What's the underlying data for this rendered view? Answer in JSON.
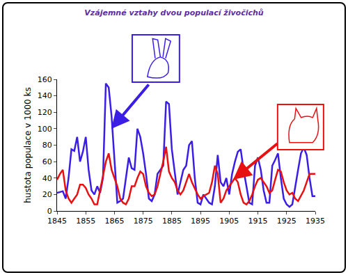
{
  "chart_data": {
    "type": "line",
    "title": "Vzájemné vztahy dvou populací živočichů",
    "y_label": "hustota populace v 1000 ks",
    "x": [
      1845,
      1846,
      1847,
      1848,
      1849,
      1850,
      1851,
      1852,
      1853,
      1854,
      1855,
      1856,
      1857,
      1858,
      1859,
      1860,
      1861,
      1862,
      1863,
      1864,
      1865,
      1866,
      1867,
      1868,
      1869,
      1870,
      1871,
      1872,
      1873,
      1874,
      1875,
      1876,
      1877,
      1878,
      1879,
      1880,
      1881,
      1882,
      1883,
      1884,
      1885,
      1886,
      1887,
      1888,
      1889,
      1890,
      1891,
      1892,
      1893,
      1894,
      1895,
      1896,
      1897,
      1898,
      1899,
      1900,
      1901,
      1902,
      1903,
      1904,
      1905,
      1906,
      1907,
      1908,
      1909,
      1910,
      1911,
      1912,
      1913,
      1914,
      1915,
      1916,
      1917,
      1918,
      1919,
      1920,
      1921,
      1922,
      1923,
      1924,
      1925,
      1926,
      1927,
      1928,
      1929,
      1930,
      1931,
      1932,
      1933,
      1934,
      1935
    ],
    "series": [
      {
        "color": "#3a1ee6",
        "values": [
          22,
          23,
          24,
          15,
          40,
          75,
          73,
          90,
          60,
          72,
          90,
          50,
          25,
          20,
          30,
          22,
          40,
          155,
          150,
          115,
          60,
          10,
          12,
          15,
          40,
          65,
          52,
          50,
          100,
          90,
          70,
          45,
          15,
          12,
          20,
          45,
          50,
          55,
          133,
          130,
          75,
          45,
          20,
          35,
          50,
          55,
          80,
          85,
          40,
          10,
          8,
          20,
          15,
          10,
          8,
          30,
          68,
          35,
          30,
          40,
          20,
          45,
          60,
          72,
          75,
          50,
          30,
          10,
          8,
          55,
          65,
          50,
          25,
          10,
          10,
          55,
          62,
          70,
          40,
          15,
          8,
          5,
          8,
          30,
          50,
          70,
          77,
          68,
          40,
          18,
          18
        ]
      },
      {
        "color": "#e81010",
        "values": [
          38,
          45,
          50,
          25,
          15,
          10,
          15,
          20,
          32,
          32,
          28,
          20,
          15,
          8,
          8,
          25,
          45,
          60,
          70,
          50,
          40,
          30,
          15,
          10,
          8,
          15,
          30,
          30,
          40,
          48,
          45,
          30,
          22,
          18,
          20,
          30,
          45,
          60,
          78,
          48,
          40,
          35,
          25,
          20,
          25,
          35,
          45,
          35,
          28,
          20,
          15,
          18,
          20,
          22,
          35,
          55,
          45,
          10,
          15,
          25,
          30,
          35,
          40,
          35,
          20,
          10,
          8,
          12,
          20,
          30,
          38,
          40,
          35,
          30,
          22,
          25,
          38,
          50,
          48,
          35,
          25,
          20,
          22,
          15,
          12,
          18,
          25,
          35,
          45,
          45,
          45
        ]
      }
    ],
    "xlim": [
      1845,
      1935
    ],
    "xticks": [
      1845,
      1855,
      1865,
      1875,
      1885,
      1895,
      1905,
      1915,
      1925,
      1935
    ],
    "ylim": [
      0,
      160
    ],
    "yticks": [
      0,
      20,
      40,
      60,
      80,
      100,
      120,
      140,
      160
    ],
    "grid": false
  }
}
